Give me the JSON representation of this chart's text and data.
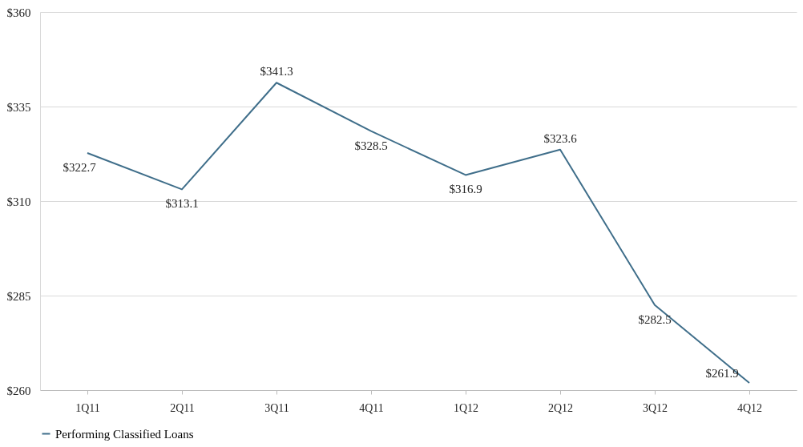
{
  "chart_data": {
    "type": "line",
    "categories": [
      "1Q11",
      "2Q11",
      "3Q11",
      "4Q11",
      "1Q12",
      "2Q12",
      "3Q12",
      "4Q12"
    ],
    "series": [
      {
        "name": "Performing Classified Loans",
        "color": "#3f6e8a",
        "values": [
          322.7,
          313.1,
          341.3,
          328.5,
          316.9,
          323.6,
          282.5,
          261.9
        ],
        "value_labels": [
          "$322.7",
          "$313.1",
          "$341.3",
          "$328.5",
          "$316.9",
          "$323.6",
          "$282.5",
          "$261.9"
        ]
      }
    ],
    "ylim": [
      260,
      360
    ],
    "yticks": [
      {
        "value": 260,
        "label": "$260"
      },
      {
        "value": 285,
        "label": "$285"
      },
      {
        "value": 310,
        "label": "$310"
      },
      {
        "value": 335,
        "label": "$335"
      },
      {
        "value": 360,
        "label": "$360"
      }
    ],
    "grid": "y",
    "legend": "bottom",
    "marker": "none",
    "line_style": "solid"
  }
}
